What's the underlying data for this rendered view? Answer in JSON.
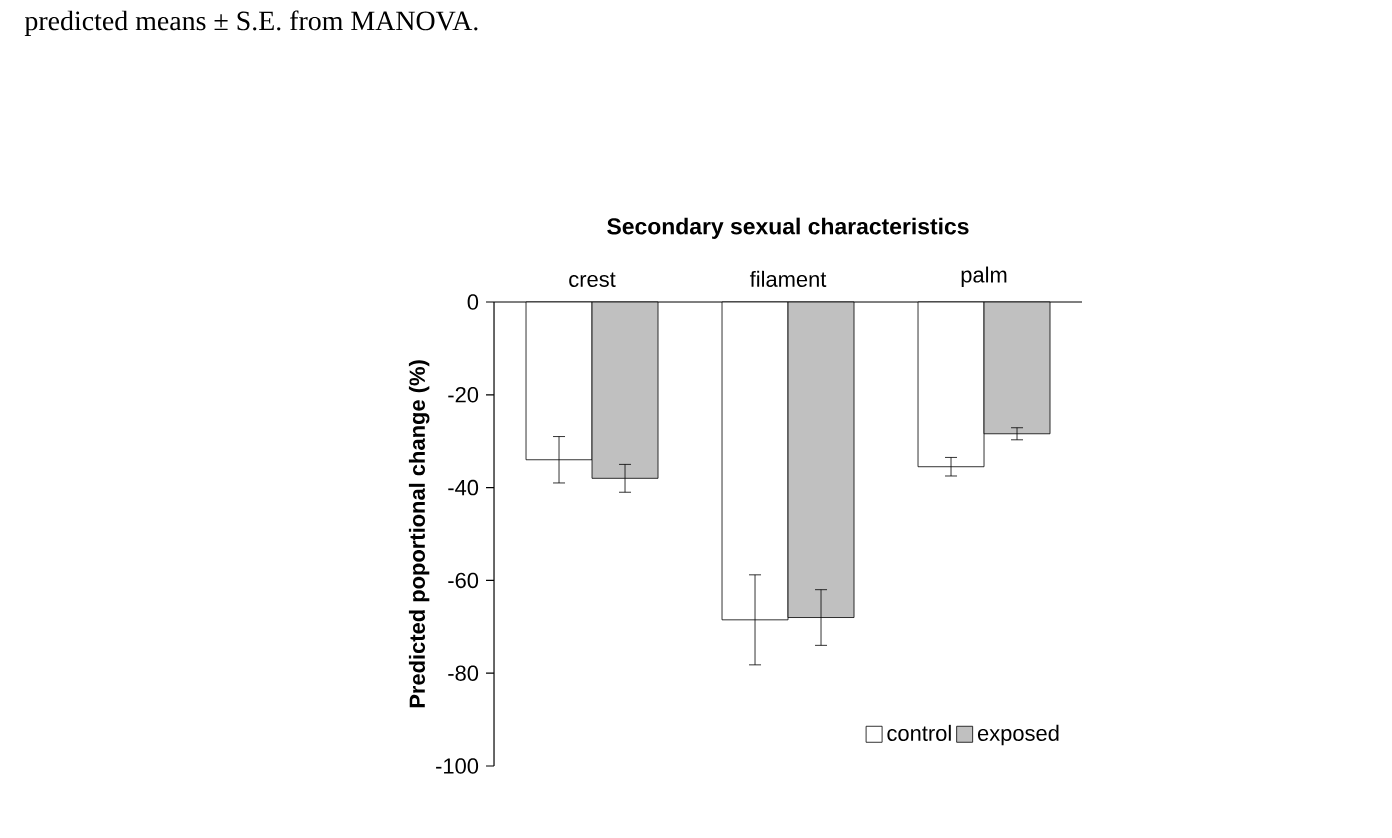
{
  "chart_data": {
    "type": "bar",
    "title": "Secondary sexual characteristics",
    "ylabel": "Predicted poportional change (%)",
    "annotations": [
      "predicted means ± S.E. from MANOVA."
    ],
    "categories": [
      "crest",
      "filament",
      "palm"
    ],
    "series": [
      {
        "name": "control",
        "color": "#ffffff",
        "values": [
          -34,
          -68.5,
          -35.5
        ],
        "errors": [
          5,
          9.7,
          2
        ]
      },
      {
        "name": "exposed",
        "color": "#c0c0c0",
        "values": [
          -38,
          -68,
          -28.4
        ],
        "errors": [
          3,
          6,
          1.3
        ]
      }
    ],
    "ylim": [
      -100,
      0
    ],
    "yticks": [
      -100,
      -80,
      -60,
      -40,
      -20,
      0
    ],
    "legend": "bottom right"
  }
}
